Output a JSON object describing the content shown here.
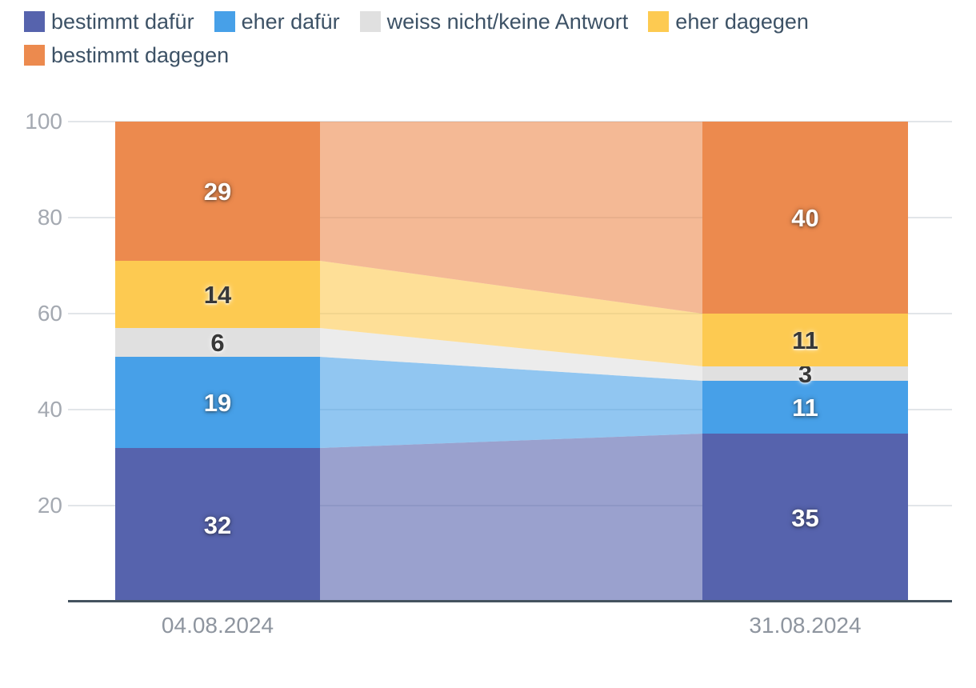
{
  "chart_data": {
    "type": "bar",
    "variant": "stacked-columns-with-translucent-flow-bands",
    "title": "",
    "categories": [
      "04.08.2024",
      "31.08.2024"
    ],
    "series": [
      {
        "name": "bestimmt dafür",
        "color": "#5663ad",
        "values": [
          32,
          35
        ],
        "label_style": "light"
      },
      {
        "name": "eher dafür",
        "color": "#47a0e8",
        "values": [
          19,
          11
        ],
        "label_style": "light"
      },
      {
        "name": "weiss nicht/keine Antwort",
        "color": "#e0e0e0",
        "values": [
          6,
          3
        ],
        "label_style": "dark"
      },
      {
        "name": "eher dagegen",
        "color": "#fdca51",
        "values": [
          14,
          11
        ],
        "label_style": "dark"
      },
      {
        "name": "bestimmt dagegen",
        "color": "#ec8a4e",
        "values": [
          29,
          40
        ],
        "label_style": "light"
      }
    ],
    "y_ticks": [
      20,
      40,
      60,
      80,
      100
    ],
    "ylim": [
      0,
      100
    ],
    "stacked": true,
    "grid": true,
    "legend_position": "top",
    "connector_band_opacity": 0.6
  },
  "colors": {
    "background": "#ffffff",
    "legend_text": "#3d5266",
    "axis_line": "#44535f",
    "gridline": "#e2e5e9",
    "y_tick_label": "#a4a9b1",
    "x_tick_label": "#8e959f",
    "label_light": "#ffffff",
    "label_dark": "#383838"
  }
}
